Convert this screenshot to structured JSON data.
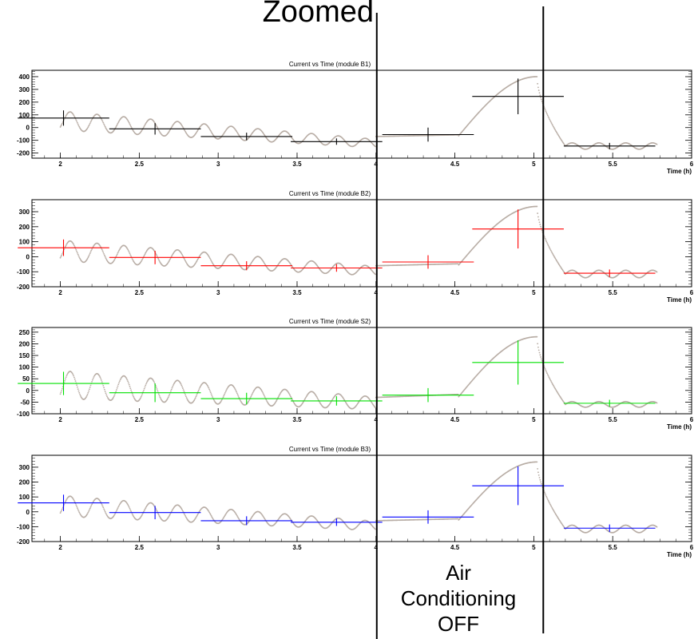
{
  "header": {
    "label": "Zoomed"
  },
  "annotation": {
    "lines": [
      "Air",
      "Conditioning",
      "OFF"
    ]
  },
  "x_axis_label": "Time (h)",
  "chart_data": [
    {
      "type": "scatter",
      "title": "Current vs Time (module B1)",
      "xlabel": "Time (h)",
      "ylabel": "",
      "xlim": [
        1.82,
        6.0
      ],
      "ylim": [
        -240,
        450
      ],
      "yticks": [
        -200,
        -100,
        0,
        100,
        200,
        300,
        400
      ],
      "xticks": [
        2,
        2.5,
        3,
        3.5,
        4,
        4.5,
        5,
        5.5,
        6
      ],
      "xtick_labels": [
        "2",
        "2.5",
        "3",
        "3.5",
        "4",
        "4.5",
        "5",
        "5.5",
        "6"
      ],
      "color": "#000000",
      "series_points_color": "#b8ada5",
      "profile": [
        {
          "x": 2.02,
          "y": 75,
          "xerr": 0.29,
          "yerr": 60
        },
        {
          "x": 2.6,
          "y": -10,
          "xerr": 0.29,
          "yerr": 45
        },
        {
          "x": 3.18,
          "y": -70,
          "xerr": 0.29,
          "yerr": 30
        },
        {
          "x": 3.75,
          "y": -110,
          "xerr": 0.29,
          "yerr": 25
        },
        {
          "x": 4.33,
          "y": -55,
          "xerr": 0.29,
          "yerr": 55
        },
        {
          "x": 4.9,
          "y": 245,
          "xerr": 0.29,
          "yerr": 140
        },
        {
          "x": 5.48,
          "y": -145,
          "xerr": 0.29,
          "yerr": 25
        }
      ],
      "trend": {
        "base0": 55,
        "base_end": -125,
        "amp": 75,
        "ac_off": -70,
        "peak": 400,
        "after": -145,
        "after_amp": 25
      }
    },
    {
      "type": "scatter",
      "title": "Current vs Time (module B2)",
      "xlabel": "Time (h)",
      "ylabel": "",
      "xlim": [
        1.82,
        6.0
      ],
      "ylim": [
        -200,
        380
      ],
      "yticks": [
        -200,
        -100,
        0,
        100,
        200,
        300
      ],
      "xticks": [
        2,
        2.5,
        3,
        3.5,
        4,
        4.5,
        5,
        5.5,
        6
      ],
      "xtick_labels": [
        "2",
        "2.5",
        "3",
        "3.5",
        "4",
        "4.5",
        "5",
        "5.5",
        "6"
      ],
      "color": "#ff0000",
      "series_points_color": "#b8ada5",
      "profile": [
        {
          "x": 2.02,
          "y": 60,
          "xerr": 0.29,
          "yerr": 55
        },
        {
          "x": 2.6,
          "y": -5,
          "xerr": 0.29,
          "yerr": 45
        },
        {
          "x": 3.18,
          "y": -60,
          "xerr": 0.29,
          "yerr": 30
        },
        {
          "x": 3.75,
          "y": -75,
          "xerr": 0.29,
          "yerr": 25
        },
        {
          "x": 4.33,
          "y": -35,
          "xerr": 0.29,
          "yerr": 45
        },
        {
          "x": 4.9,
          "y": 185,
          "xerr": 0.29,
          "yerr": 130
        },
        {
          "x": 5.48,
          "y": -110,
          "xerr": 0.29,
          "yerr": 25
        }
      ],
      "trend": {
        "base0": 40,
        "base_end": -95,
        "amp": 70,
        "ac_off": -60,
        "peak": 335,
        "after": -115,
        "after_amp": 25
      }
    },
    {
      "type": "scatter",
      "title": "Current vs Time (module S2)",
      "xlabel": "Time (h)",
      "ylabel": "",
      "xlim": [
        1.82,
        6.0
      ],
      "ylim": [
        -100,
        270
      ],
      "yticks": [
        -100,
        -50,
        0,
        50,
        100,
        150,
        200,
        250
      ],
      "xticks": [
        2,
        2.5,
        3,
        3.5,
        4,
        4.5,
        5,
        5.5,
        6
      ],
      "xtick_labels": [
        "2",
        "2.5",
        "3",
        "3.5",
        "4",
        "4.5",
        "5",
        "5.5",
        "6"
      ],
      "color": "#00e000",
      "series_points_color": "#b8ada5",
      "profile": [
        {
          "x": 2.02,
          "y": 30,
          "xerr": 0.29,
          "yerr": 50
        },
        {
          "x": 2.6,
          "y": -10,
          "xerr": 0.29,
          "yerr": 40
        },
        {
          "x": 3.18,
          "y": -35,
          "xerr": 0.29,
          "yerr": 25
        },
        {
          "x": 3.75,
          "y": -45,
          "xerr": 0.29,
          "yerr": 20
        },
        {
          "x": 4.33,
          "y": -20,
          "xerr": 0.29,
          "yerr": 30
        },
        {
          "x": 4.9,
          "y": 120,
          "xerr": 0.29,
          "yerr": 95
        },
        {
          "x": 5.48,
          "y": -55,
          "xerr": 0.29,
          "yerr": 15
        }
      ],
      "trend": {
        "base0": 25,
        "base_end": -55,
        "amp": 60,
        "ac_off": -30,
        "peak": 230,
        "after": -60,
        "after_amp": 12
      }
    },
    {
      "type": "scatter",
      "title": "Current vs Time (module B3)",
      "xlabel": "Time (h)",
      "ylabel": "",
      "xlim": [
        1.82,
        6.0
      ],
      "ylim": [
        -200,
        380
      ],
      "yticks": [
        -200,
        -100,
        0,
        100,
        200,
        300
      ],
      "xticks": [
        2,
        2.5,
        3,
        3.5,
        4,
        4.5,
        5,
        5.5,
        6
      ],
      "xtick_labels": [
        "2",
        "2.5",
        "3",
        "3.5",
        "4",
        "4.5",
        "5",
        "5.5",
        "6"
      ],
      "color": "#0000ff",
      "series_points_color": "#b8ada5",
      "profile": [
        {
          "x": 2.02,
          "y": 60,
          "xerr": 0.29,
          "yerr": 55
        },
        {
          "x": 2.6,
          "y": -5,
          "xerr": 0.29,
          "yerr": 45
        },
        {
          "x": 3.18,
          "y": -60,
          "xerr": 0.29,
          "yerr": 30
        },
        {
          "x": 3.75,
          "y": -70,
          "xerr": 0.29,
          "yerr": 25
        },
        {
          "x": 4.33,
          "y": -35,
          "xerr": 0.29,
          "yerr": 45
        },
        {
          "x": 4.9,
          "y": 175,
          "xerr": 0.29,
          "yerr": 130
        },
        {
          "x": 5.48,
          "y": -110,
          "xerr": 0.29,
          "yerr": 25
        }
      ],
      "trend": {
        "base0": 40,
        "base_end": -95,
        "amp": 70,
        "ac_off": -60,
        "peak": 335,
        "after": -115,
        "after_amp": 25
      }
    }
  ],
  "markers": {
    "ac_off_start": 4.0,
    "ac_off_end": 5.05
  }
}
